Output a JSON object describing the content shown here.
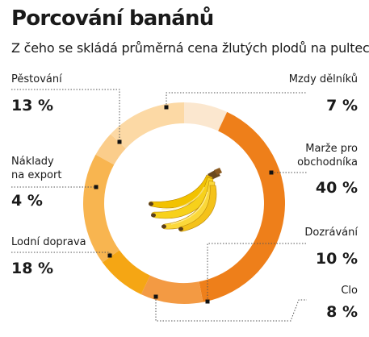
{
  "header": {
    "title": "Porcování banánů",
    "subtitle": "Z čeho se skládá průměrná cena žlutých plodů na pultech?"
  },
  "chart_data": {
    "type": "pie",
    "donut": true,
    "title": "Porcování banánů",
    "subtitle": "Z čeho se skládá průměrná cena žlutých plodů na pultech?",
    "unit": "%",
    "start": "12 o'clock, clockwise",
    "slices": [
      {
        "label": "Mzdy dělníků",
        "value": 7,
        "display": "7 %",
        "color": "#fbe7cf"
      },
      {
        "label": "Marže pro obchodníka",
        "label_lines": [
          "Marže pro",
          "obchodníka"
        ],
        "value": 40,
        "display": "40 %",
        "color": "#ee7f1a"
      },
      {
        "label": "Dozrávání",
        "value": 10,
        "display": "10 %",
        "color": "#f39a43"
      },
      {
        "label": "Clo",
        "value": 8,
        "display": "8 %",
        "color": "#f5a614"
      },
      {
        "label": "Lodní doprava",
        "value": 18,
        "display": "18 %",
        "color": "#f8b550"
      },
      {
        "label": "Náklady na export",
        "label_lines": [
          "Náklady",
          "na export"
        ],
        "value": 4,
        "display": "4 %",
        "color": "#fbcd8b"
      },
      {
        "label": "Pěstování",
        "value": 13,
        "display": "13 %",
        "color": "#fcd9a5"
      }
    ],
    "center_image": "bananas-icon",
    "legend": "callout labels with leader lines"
  }
}
